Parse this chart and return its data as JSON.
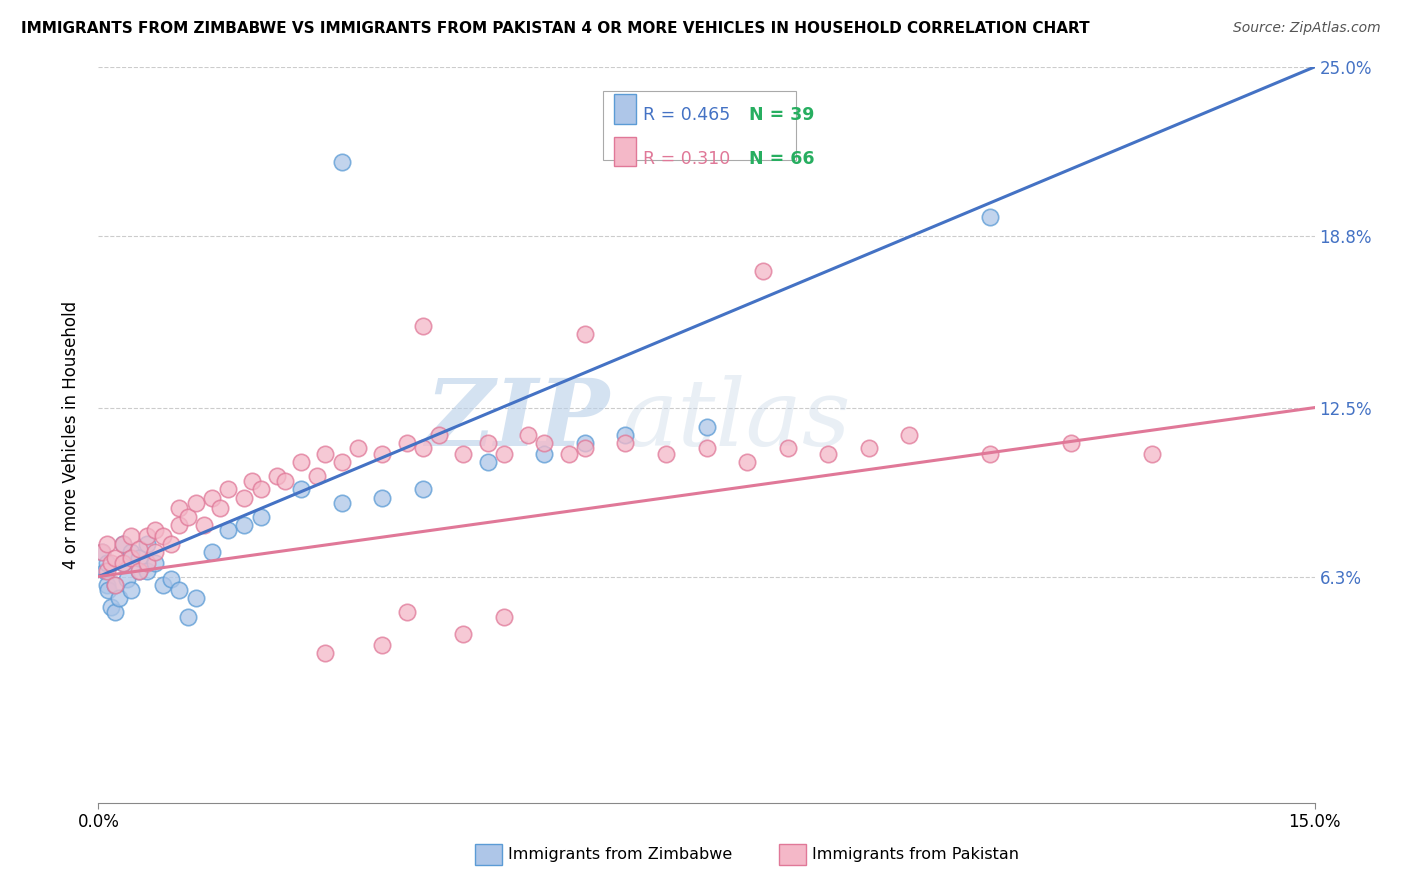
{
  "title": "IMMIGRANTS FROM ZIMBABWE VS IMMIGRANTS FROM PAKISTAN 4 OR MORE VEHICLES IN HOUSEHOLD CORRELATION CHART",
  "source": "Source: ZipAtlas.com",
  "ylabel_label": "4 or more Vehicles in Household",
  "legend_label_zim": "Immigrants from Zimbabwe",
  "legend_label_pak": "Immigrants from Pakistan",
  "legend_r_zim": "R = 0.465",
  "legend_n_zim": "N = 39",
  "legend_r_pak": "R = 0.310",
  "legend_n_pak": "N = 66",
  "color_zim_fill": "#aec6e8",
  "color_zim_edge": "#5b9bd5",
  "color_pak_fill": "#f4b8c8",
  "color_pak_edge": "#e07898",
  "line_color_zim": "#4472c4",
  "line_color_pak": "#e07898",
  "right_tick_color": "#4472c4",
  "background": "#ffffff",
  "watermark_zip": "ZIP",
  "watermark_atlas": "atlas",
  "xlim": [
    0.0,
    0.15
  ],
  "ylim": [
    -0.02,
    0.25
  ],
  "ytick_vals": [
    0.063,
    0.125,
    0.188,
    0.25
  ],
  "ytick_labels": [
    "6.3%",
    "12.5%",
    "18.8%",
    "25.0%"
  ],
  "xtick_vals": [
    0.0,
    0.15
  ],
  "xtick_labels": [
    "0.0%",
    "15.0%"
  ],
  "zim_x": [
    0.0005,
    0.0008,
    0.001,
    0.001,
    0.0012,
    0.0015,
    0.002,
    0.002,
    0.0025,
    0.003,
    0.003,
    0.0035,
    0.004,
    0.004,
    0.005,
    0.005,
    0.006,
    0.006,
    0.007,
    0.008,
    0.009,
    0.01,
    0.011,
    0.012,
    0.014,
    0.016,
    0.018,
    0.02,
    0.025,
    0.03,
    0.035,
    0.04,
    0.048,
    0.055,
    0.06,
    0.065,
    0.075,
    0.11,
    0.03
  ],
  "zim_y": [
    0.072,
    0.065,
    0.06,
    0.068,
    0.058,
    0.052,
    0.05,
    0.06,
    0.055,
    0.068,
    0.075,
    0.062,
    0.072,
    0.058,
    0.065,
    0.07,
    0.065,
    0.075,
    0.068,
    0.06,
    0.062,
    0.058,
    0.048,
    0.055,
    0.072,
    0.08,
    0.082,
    0.085,
    0.095,
    0.09,
    0.092,
    0.095,
    0.105,
    0.108,
    0.112,
    0.115,
    0.118,
    0.195,
    0.215
  ],
  "pak_x": [
    0.0005,
    0.001,
    0.001,
    0.0015,
    0.002,
    0.002,
    0.003,
    0.003,
    0.004,
    0.004,
    0.005,
    0.005,
    0.006,
    0.006,
    0.007,
    0.007,
    0.008,
    0.009,
    0.01,
    0.01,
    0.011,
    0.012,
    0.013,
    0.014,
    0.015,
    0.016,
    0.018,
    0.019,
    0.02,
    0.022,
    0.023,
    0.025,
    0.027,
    0.028,
    0.03,
    0.032,
    0.035,
    0.038,
    0.04,
    0.042,
    0.045,
    0.048,
    0.05,
    0.053,
    0.055,
    0.058,
    0.06,
    0.065,
    0.07,
    0.075,
    0.08,
    0.085,
    0.09,
    0.095,
    0.1,
    0.11,
    0.12,
    0.13,
    0.038,
    0.05,
    0.045,
    0.035,
    0.028,
    0.04,
    0.06,
    0.082
  ],
  "pak_y": [
    0.072,
    0.065,
    0.075,
    0.068,
    0.06,
    0.07,
    0.068,
    0.075,
    0.07,
    0.078,
    0.065,
    0.073,
    0.068,
    0.078,
    0.072,
    0.08,
    0.078,
    0.075,
    0.082,
    0.088,
    0.085,
    0.09,
    0.082,
    0.092,
    0.088,
    0.095,
    0.092,
    0.098,
    0.095,
    0.1,
    0.098,
    0.105,
    0.1,
    0.108,
    0.105,
    0.11,
    0.108,
    0.112,
    0.11,
    0.115,
    0.108,
    0.112,
    0.108,
    0.115,
    0.112,
    0.108,
    0.11,
    0.112,
    0.108,
    0.11,
    0.105,
    0.11,
    0.108,
    0.11,
    0.115,
    0.108,
    0.112,
    0.108,
    0.05,
    0.048,
    0.042,
    0.038,
    0.035,
    0.155,
    0.152,
    0.175
  ]
}
